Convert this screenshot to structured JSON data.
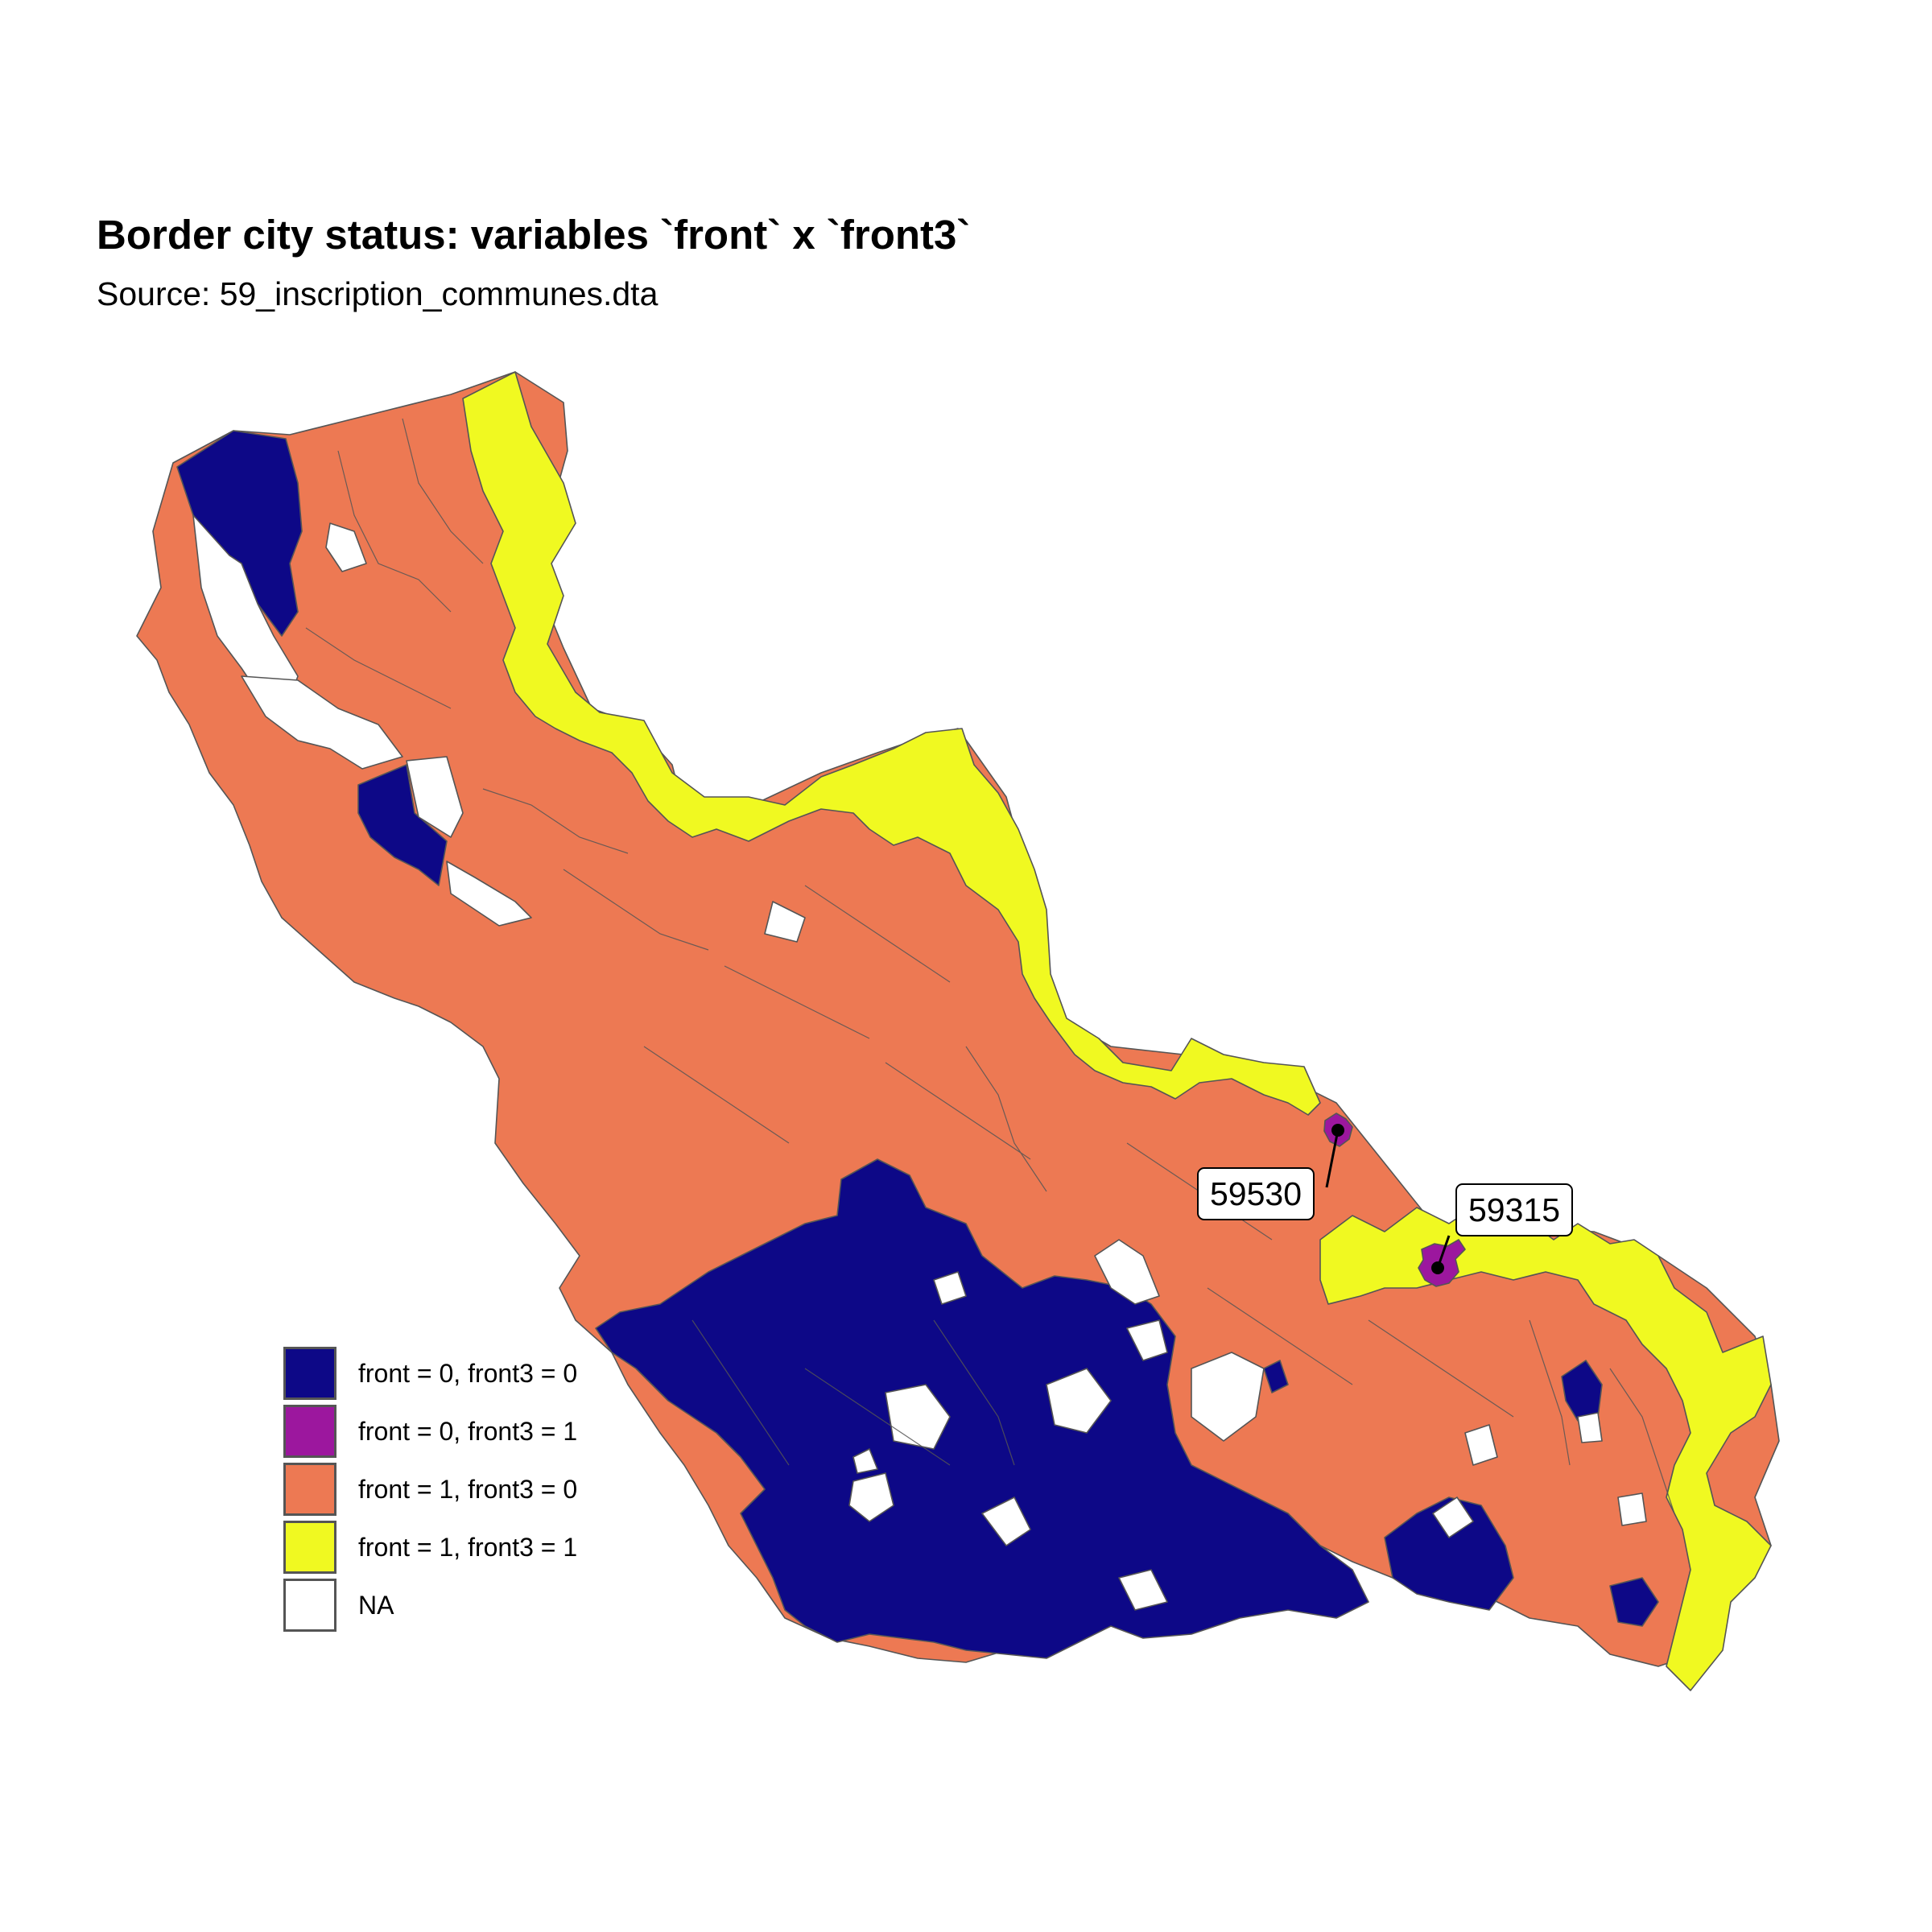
{
  "title": "Border city status: variables `front` x `front3`",
  "subtitle": "Source: 59_inscription_communes.dta",
  "colors": {
    "front0_front30": "#0d0887",
    "front0_front31": "#9c179e",
    "front1_front30": "#ed7953",
    "front1_front31": "#f0f921",
    "na": "#ffffff",
    "border": "#555555"
  },
  "legend": [
    {
      "label": "front = 0, front3 = 0",
      "color": "#0d0887"
    },
    {
      "label": "front = 0, front3 = 1",
      "color": "#9c179e"
    },
    {
      "label": "front = 1, front3 = 0",
      "color": "#ed7953"
    },
    {
      "label": "front = 1, front3 = 1",
      "color": "#f0f921"
    },
    {
      "label": "NA",
      "color": "#ffffff"
    }
  ],
  "labels": [
    {
      "code": "59530",
      "category": "front = 0, front3 = 1"
    },
    {
      "code": "59315",
      "category": "front = 0, front3 = 1"
    }
  ]
}
